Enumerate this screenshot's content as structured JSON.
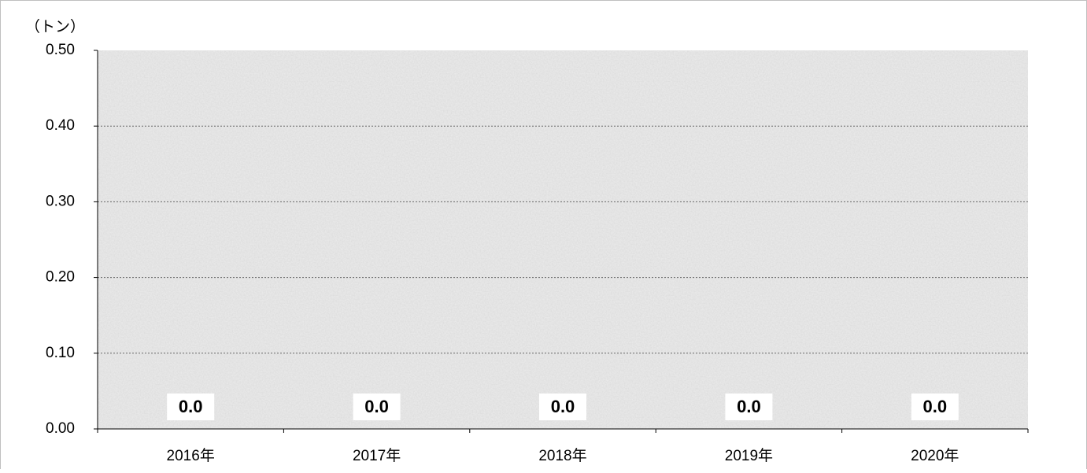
{
  "chart_data": {
    "type": "bar",
    "y_axis_label": "（トン）",
    "categories": [
      "2016年",
      "2017年",
      "2018年",
      "2019年",
      "2020年"
    ],
    "values": [
      0,
      0,
      0,
      0,
      0
    ],
    "value_labels": [
      "0.0",
      "0.0",
      "0.0",
      "0.0",
      "0.0"
    ],
    "color": "#a6a6a6",
    "ylim": [
      0,
      0.5
    ],
    "yticks": [
      {
        "value": 0,
        "label": "0.00"
      },
      {
        "value": 0.1,
        "label": "0.10"
      },
      {
        "value": 0.2,
        "label": "0.20"
      },
      {
        "value": 0.3,
        "label": "0.30"
      },
      {
        "value": 0.4,
        "label": "0.40"
      },
      {
        "value": 0.5,
        "label": "0.50"
      }
    ],
    "grid": true
  }
}
